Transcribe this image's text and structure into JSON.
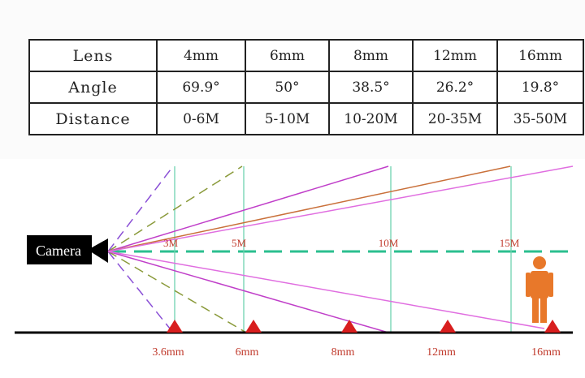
{
  "table": {
    "rows": [
      [
        "Lens",
        "4mm",
        "6mm",
        "8mm",
        "12mm",
        "16mm"
      ],
      [
        "Angle",
        "69.9°",
        "50°",
        "38.5°",
        "26.2°",
        "19.8°"
      ],
      [
        "Distance",
        "0-6M",
        "5-10M",
        "10-20M",
        "20-35M",
        "35-50M"
      ]
    ]
  },
  "diagram": {
    "camera_label": "Camera",
    "distance_markers": [
      "3M",
      "5M",
      "10M",
      "15M"
    ],
    "lens_markers": [
      "3.6mm",
      "6mm",
      "8mm",
      "12mm",
      "16mm"
    ]
  }
}
